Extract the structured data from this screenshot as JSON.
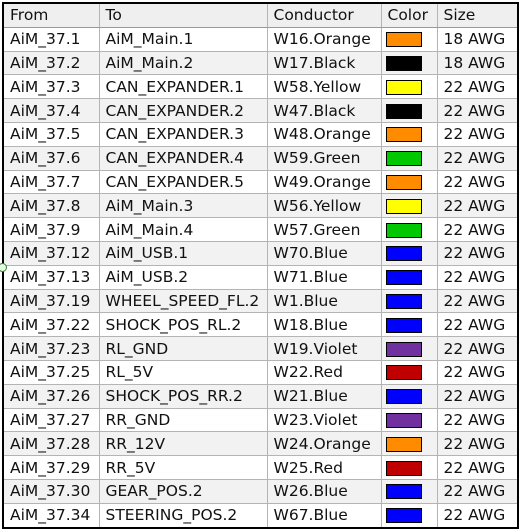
{
  "table": {
    "headers": [
      "From",
      "To",
      "Conductor",
      "Color",
      "Size"
    ],
    "rows": [
      {
        "from": "AiM_37.1",
        "to": "AiM_Main.1",
        "conductor": "W16.Orange",
        "color": "orange",
        "hex": "#ff8c00",
        "size": "18 AWG"
      },
      {
        "from": "AiM_37.2",
        "to": "AiM_Main.2",
        "conductor": "W17.Black",
        "color": "black",
        "hex": "#000000",
        "size": "18 AWG"
      },
      {
        "from": "AiM_37.3",
        "to": "CAN_EXPANDER.1",
        "conductor": "W58.Yellow",
        "color": "yellow",
        "hex": "#ffff00",
        "size": "22 AWG"
      },
      {
        "from": "AiM_37.4",
        "to": "CAN_EXPANDER.2",
        "conductor": "W47.Black",
        "color": "black",
        "hex": "#000000",
        "size": "22 AWG"
      },
      {
        "from": "AiM_37.5",
        "to": "CAN_EXPANDER.3",
        "conductor": "W48.Orange",
        "color": "orange",
        "hex": "#ff8c00",
        "size": "22 AWG"
      },
      {
        "from": "AiM_37.6",
        "to": "CAN_EXPANDER.4",
        "conductor": "W59.Green",
        "color": "green",
        "hex": "#00c800",
        "size": "22 AWG"
      },
      {
        "from": "AiM_37.7",
        "to": "CAN_EXPANDER.5",
        "conductor": "W49.Orange",
        "color": "orange",
        "hex": "#ff8c00",
        "size": "22 AWG"
      },
      {
        "from": "AiM_37.8",
        "to": "AiM_Main.3",
        "conductor": "W56.Yellow",
        "color": "yellow",
        "hex": "#ffff00",
        "size": "22 AWG"
      },
      {
        "from": "AiM_37.9",
        "to": "AiM_Main.4",
        "conductor": "W57.Green",
        "color": "green",
        "hex": "#00c800",
        "size": "22 AWG"
      },
      {
        "from": "AiM_37.12",
        "to": "AiM_USB.1",
        "conductor": "W70.Blue",
        "color": "blue",
        "hex": "#0000ff",
        "size": "22 AWG"
      },
      {
        "from": "AiM_37.13",
        "to": "AiM_USB.2",
        "conductor": "W71.Blue",
        "color": "blue",
        "hex": "#0000ff",
        "size": "22 AWG"
      },
      {
        "from": "AiM_37.19",
        "to": "WHEEL_SPEED_FL.2",
        "conductor": "W1.Blue",
        "color": "blue",
        "hex": "#0000ff",
        "size": "22 AWG"
      },
      {
        "from": "AiM_37.22",
        "to": "SHOCK_POS_RL.2",
        "conductor": "W18.Blue",
        "color": "blue",
        "hex": "#0000ff",
        "size": "22 AWG"
      },
      {
        "from": "AiM_37.23",
        "to": "RL_GND",
        "conductor": "W19.Violet",
        "color": "violet",
        "hex": "#7030a0",
        "size": "22 AWG"
      },
      {
        "from": "AiM_37.25",
        "to": "RL_5V",
        "conductor": "W22.Red",
        "color": "red",
        "hex": "#c00000",
        "size": "22 AWG"
      },
      {
        "from": "AiM_37.26",
        "to": "SHOCK_POS_RR.2",
        "conductor": "W21.Blue",
        "color": "blue",
        "hex": "#0000ff",
        "size": "22 AWG"
      },
      {
        "from": "AiM_37.27",
        "to": "RR_GND",
        "conductor": "W23.Violet",
        "color": "violet",
        "hex": "#7030a0",
        "size": "22 AWG"
      },
      {
        "from": "AiM_37.28",
        "to": "RR_12V",
        "conductor": "W24.Orange",
        "color": "orange",
        "hex": "#ff8c00",
        "size": "22 AWG"
      },
      {
        "from": "AiM_37.29",
        "to": "RR_5V",
        "conductor": "W25.Red",
        "color": "red",
        "hex": "#c00000",
        "size": "22 AWG"
      },
      {
        "from": "AiM_37.30",
        "to": "GEAR_POS.2",
        "conductor": "W26.Blue",
        "color": "blue",
        "hex": "#0000ff",
        "size": "22 AWG"
      },
      {
        "from": "AiM_37.34",
        "to": "STEERING_POS.2",
        "conductor": "W67.Blue",
        "color": "blue",
        "hex": "#0000ff",
        "size": "22 AWG"
      }
    ]
  }
}
